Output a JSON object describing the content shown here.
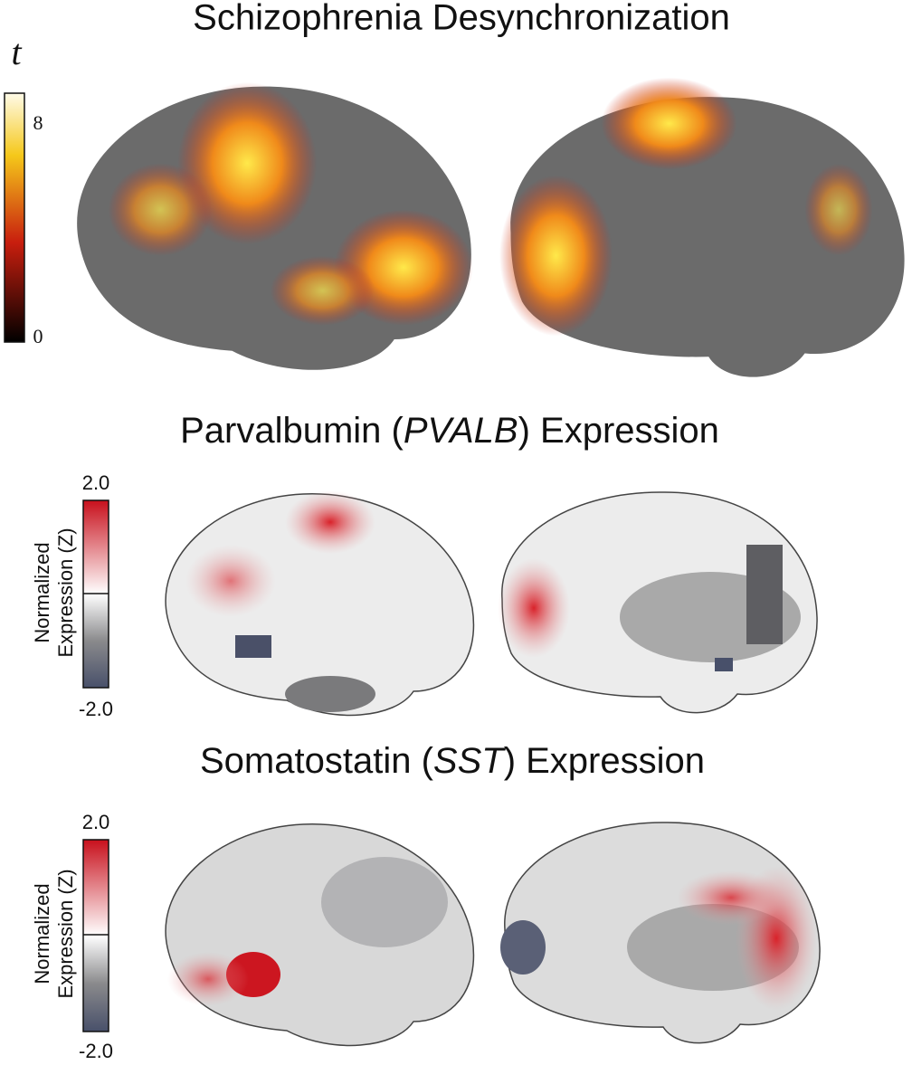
{
  "panels": [
    {
      "title": [
        "Schizophrenia Desynchronization"
      ],
      "colorbar": {
        "label": [
          "t"
        ],
        "max": "8",
        "min": "0"
      }
    },
    {
      "title": [
        "Parvalbumin (",
        "PVALB",
        ") Expression"
      ],
      "colorbar": {
        "label": [
          "Normalized",
          "Expression (Z)"
        ],
        "max": "2.0",
        "min": "-2.0"
      }
    },
    {
      "title": [
        "Somatostatin (",
        "SST",
        ") Expression"
      ],
      "colorbar": {
        "label": [
          "Normalized",
          "Expression (Z)"
        ],
        "max": "2.0",
        "min": "-2.0"
      }
    }
  ]
}
